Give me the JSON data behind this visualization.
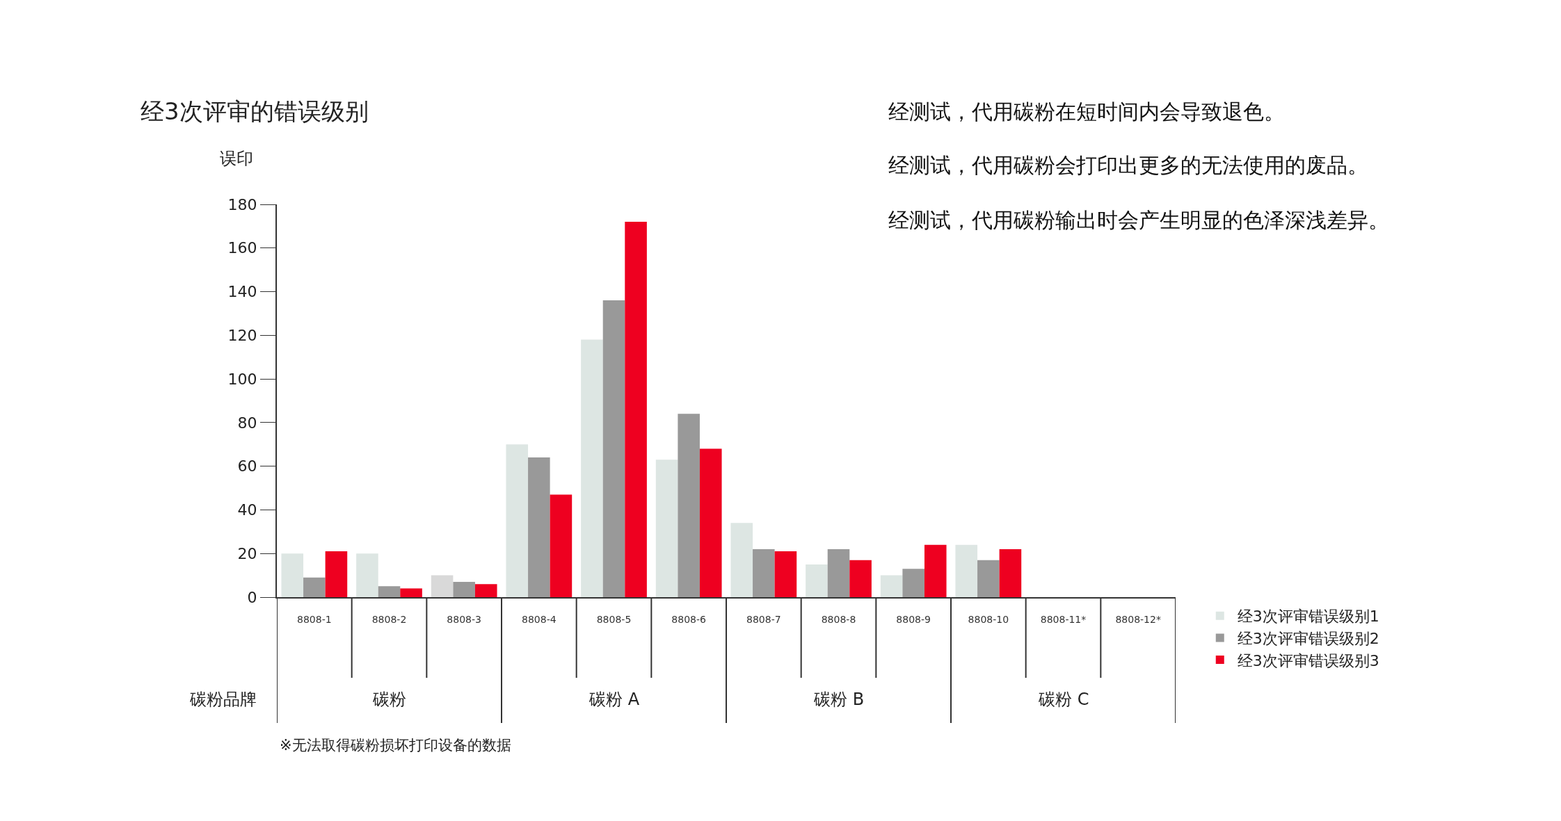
{
  "chart_data": {
    "type": "bar",
    "title": "经3次评审的错误级别",
    "xlabel": "碳粉品牌",
    "ylabel": "误印",
    "categories": [
      "8808-1",
      "8808-2",
      "8808-3",
      "8808-4",
      "8808-5",
      "8808-6",
      "8808-7",
      "8808-8",
      "8808-9",
      "8808-10",
      "8808-11*",
      "8808-12*"
    ],
    "series": [
      {
        "name": "经3次评审错误级别1",
        "color": "#dde6e3",
        "colors": [
          "#dde6e3",
          "#dde6e3",
          "#d9d9d9",
          "#dde6e3",
          "#dde6e3",
          "#dde6e3",
          "#dde6e3",
          "#dde6e3",
          "#dde6e3",
          "#dde6e3",
          "#dde6e3",
          "#dde6e3"
        ],
        "values": [
          20,
          20,
          10,
          70,
          118,
          63,
          34,
          15,
          10,
          24,
          null,
          null
        ]
      },
      {
        "name": "经3次评审错误级别2",
        "color": "#999999",
        "values": [
          9,
          5,
          7,
          64,
          136,
          84,
          22,
          22,
          13,
          17,
          null,
          null
        ]
      },
      {
        "name": "经3次评审错误级别3",
        "color": "#ee0020",
        "values": [
          21,
          4,
          6,
          47,
          172,
          68,
          21,
          17,
          24,
          22,
          null,
          null
        ]
      }
    ],
    "ylim": [
      0,
      180
    ],
    "yticks": [
      0,
      20,
      40,
      60,
      80,
      100,
      120,
      140,
      160,
      180
    ],
    "legend": "bottom right",
    "annotations": [
      "碳粉",
      "碳粉 A",
      "碳粉 B",
      "碳粉 C",
      "经测试，代用碳粉在短时间内会导致退色。",
      "经测试，代用碳粉会打印出更多的无法使用的废品。",
      "经测试，代用碳粉输出时会产生明显的色泽深浅差异。",
      "※无法取得碳粉损坏打印设备的数据"
    ]
  }
}
